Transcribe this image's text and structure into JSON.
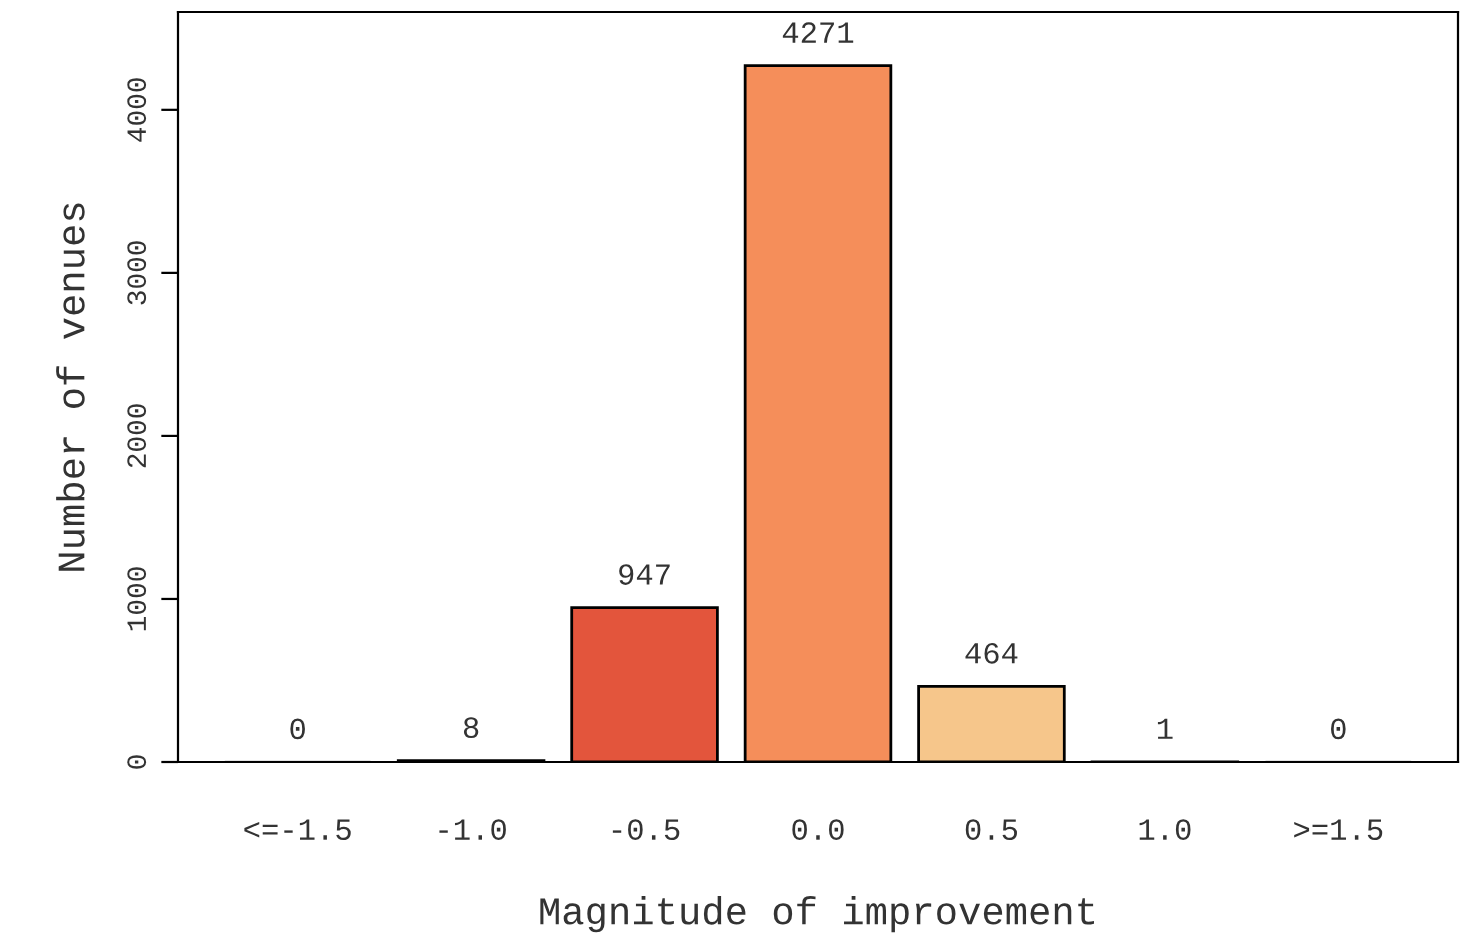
{
  "chart_data": {
    "type": "bar",
    "xlabel": "Magnitude of improvement",
    "ylabel": "Number of venues",
    "categories": [
      "<=-1.5",
      "-1.0",
      "-0.5",
      "0.0",
      "0.5",
      "1.0",
      ">=1.5"
    ],
    "values": [
      0,
      8,
      947,
      4271,
      464,
      1,
      0
    ],
    "colors": [
      "#c8c8c8",
      "#d7301f",
      "#e3553c",
      "#f58e5a",
      "#f6c68b",
      "#c8c8c8",
      "#c8c8c8"
    ],
    "ylim": [
      0,
      4600
    ],
    "yticks": [
      0,
      1000,
      2000,
      3000,
      4000
    ],
    "data_labels": true,
    "grid": false,
    "legend": false
  }
}
